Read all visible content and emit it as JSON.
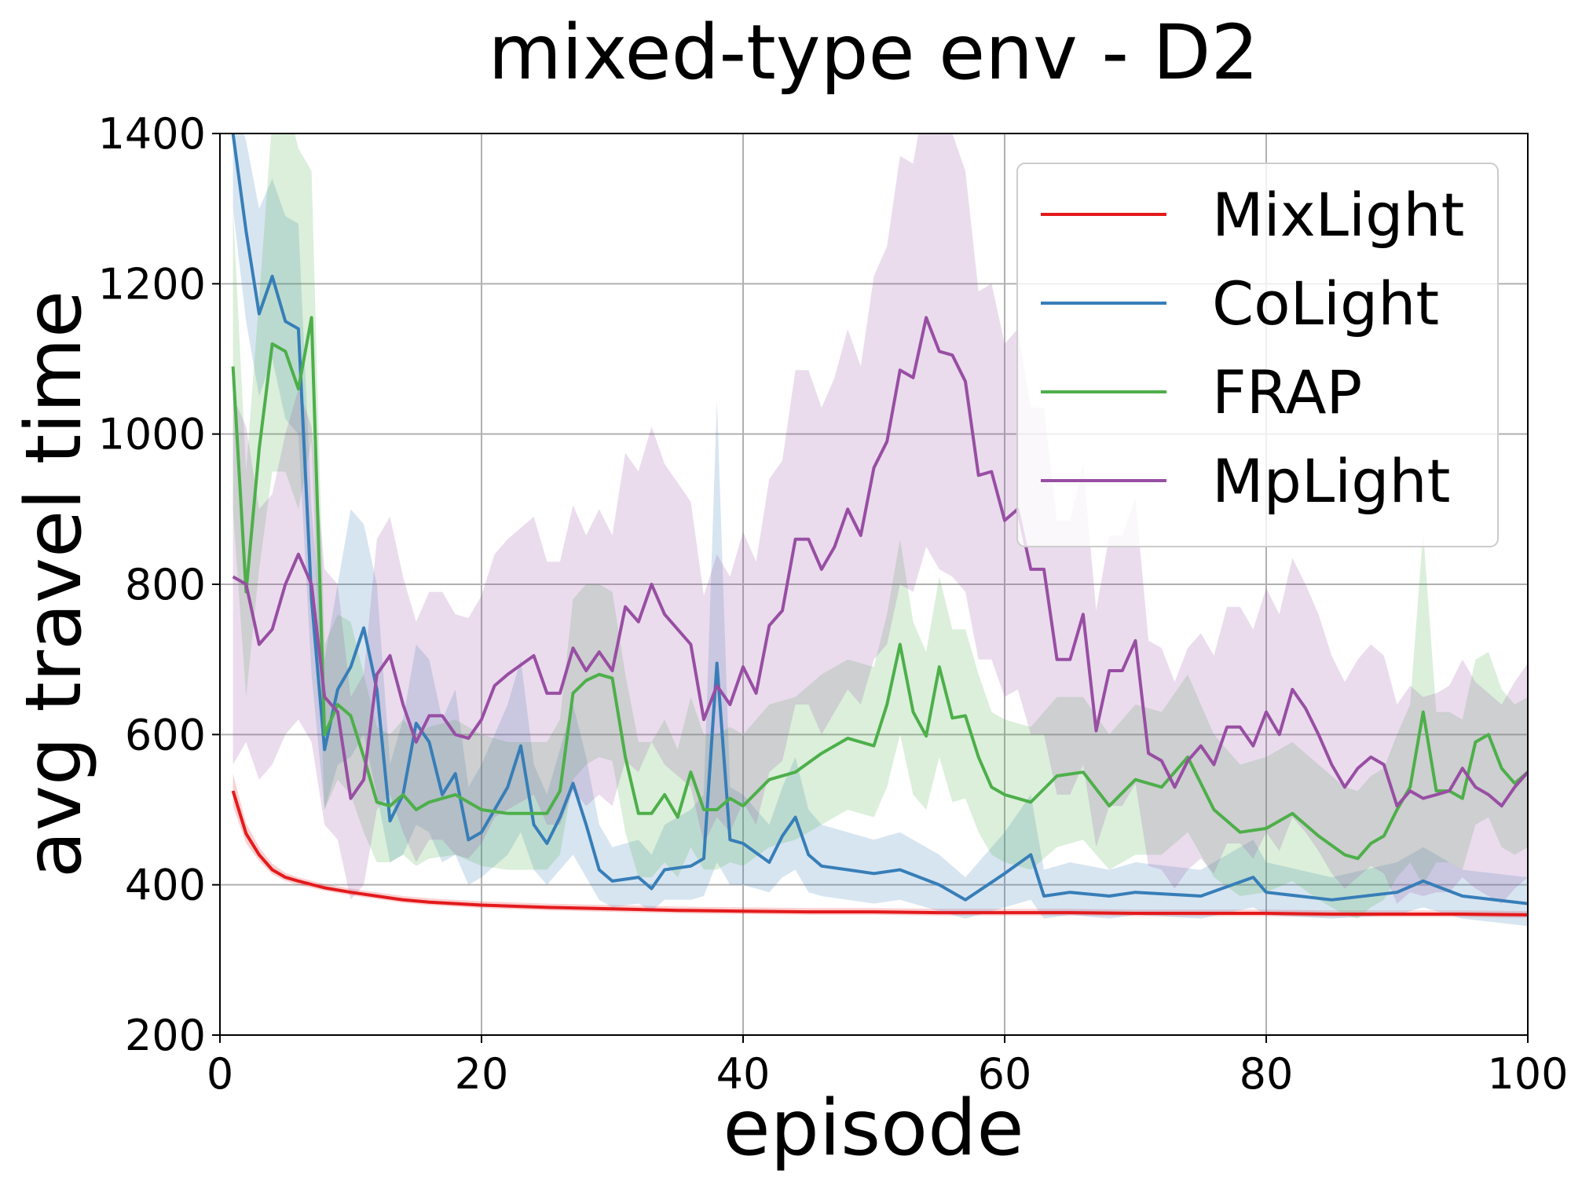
{
  "chart_data": {
    "type": "line",
    "title": "mixed-type env - D2",
    "xlabel": "episode",
    "ylabel": "avg travel time",
    "xlim": [
      0,
      100
    ],
    "ylim": [
      200,
      1400
    ],
    "grid": true,
    "legend_position": "top-right",
    "x_ticks": [
      0,
      20,
      40,
      60,
      80,
      100
    ],
    "x_tick_labels": [
      "0",
      "20",
      "40",
      "60",
      "80",
      "100"
    ],
    "y_ticks": [
      200,
      400,
      600,
      800,
      1000,
      1200,
      1400
    ],
    "y_tick_labels": [
      "200",
      "400",
      "600",
      "800",
      "1000",
      "1200",
      "1400"
    ],
    "series": [
      {
        "name": "MixLight",
        "color": "#e41a1c",
        "x": [
          1,
          2,
          3,
          4,
          5,
          6,
          8,
          10,
          12,
          14,
          16,
          20,
          25,
          30,
          35,
          40,
          45,
          50,
          55,
          60,
          65,
          70,
          75,
          80,
          85,
          90,
          95,
          100
        ],
        "values": [
          525,
          468,
          440,
          420,
          410,
          405,
          396,
          390,
          385,
          380,
          377,
          373,
          370,
          368,
          366,
          365,
          364,
          364,
          363,
          363,
          363,
          362,
          362,
          362,
          361,
          361,
          361,
          360
        ],
        "lower": [
          505,
          455,
          432,
          414,
          405,
          400,
          392,
          386,
          381,
          376,
          373,
          369,
          366,
          364,
          362,
          361,
          360,
          360,
          359,
          359,
          359,
          358,
          358,
          358,
          357,
          357,
          357,
          356
        ],
        "upper": [
          548,
          482,
          450,
          428,
          416,
          410,
          401,
          395,
          390,
          385,
          382,
          378,
          375,
          373,
          371,
          370,
          369,
          369,
          368,
          368,
          368,
          367,
          367,
          367,
          366,
          366,
          366,
          365
        ]
      },
      {
        "name": "CoLight",
        "color": "#377eb8",
        "x": [
          1,
          2,
          3,
          4,
          5,
          6,
          7,
          8,
          9,
          10,
          11,
          12,
          13,
          14,
          15,
          16,
          17,
          18,
          19,
          20,
          22,
          23,
          24,
          25,
          26,
          27,
          28,
          29,
          30,
          32,
          33,
          34,
          36,
          37,
          38,
          39,
          40,
          42,
          43,
          44,
          45,
          46,
          48,
          50,
          52,
          55,
          57,
          60,
          62,
          63,
          65,
          68,
          70,
          75,
          79,
          80,
          85,
          90,
          92,
          95,
          100
        ],
        "values": [
          1400,
          1270,
          1160,
          1210,
          1150,
          1140,
          780,
          580,
          660,
          690,
          742,
          660,
          485,
          520,
          615,
          590,
          520,
          548,
          460,
          470,
          530,
          585,
          480,
          455,
          490,
          535,
          480,
          420,
          405,
          410,
          395,
          420,
          425,
          435,
          695,
          460,
          455,
          430,
          465,
          490,
          440,
          425,
          420,
          415,
          420,
          400,
          380,
          415,
          440,
          385,
          390,
          385,
          390,
          385,
          410,
          390,
          380,
          390,
          405,
          385,
          375
        ],
        "lower": [
          1300,
          1150,
          1050,
          1100,
          1020,
          1000,
          680,
          500,
          560,
          570,
          600,
          520,
          430,
          440,
          480,
          470,
          430,
          440,
          400,
          410,
          440,
          470,
          420,
          400,
          420,
          440,
          410,
          380,
          370,
          375,
          365,
          380,
          380,
          385,
          430,
          400,
          400,
          390,
          410,
          420,
          390,
          385,
          380,
          375,
          380,
          365,
          355,
          370,
          380,
          355,
          360,
          355,
          360,
          355,
          370,
          360,
          355,
          360,
          370,
          355,
          345
        ],
        "upper": [
          1450,
          1390,
          1300,
          1340,
          1290,
          1280,
          900,
          700,
          800,
          900,
          880,
          800,
          560,
          620,
          720,
          700,
          620,
          660,
          530,
          560,
          640,
          700,
          560,
          520,
          580,
          640,
          570,
          480,
          450,
          460,
          440,
          480,
          500,
          520,
          1045,
          530,
          520,
          480,
          530,
          570,
          500,
          480,
          470,
          460,
          470,
          440,
          410,
          470,
          520,
          420,
          430,
          420,
          430,
          420,
          460,
          430,
          410,
          430,
          450,
          420,
          410
        ]
      },
      {
        "name": "FRAP",
        "color": "#4daf4a",
        "x": [
          1,
          2,
          3,
          4,
          5,
          6,
          7,
          8,
          9,
          10,
          11,
          12,
          13,
          14,
          15,
          16,
          18,
          20,
          22,
          25,
          26,
          27,
          28,
          29,
          30,
          31,
          32,
          33,
          34,
          35,
          36,
          37,
          38,
          39,
          40,
          42,
          44,
          46,
          48,
          50,
          51,
          52,
          53,
          54,
          55,
          56,
          57,
          58,
          59,
          60,
          62,
          64,
          66,
          68,
          70,
          72,
          74,
          76,
          78,
          80,
          82,
          84,
          86,
          87,
          88,
          89,
          90,
          91,
          92,
          93,
          94,
          95,
          96,
          97,
          98,
          99,
          100
        ],
        "values": [
          1090,
          790,
          980,
          1120,
          1110,
          1060,
          1155,
          600,
          640,
          625,
          570,
          510,
          505,
          520,
          500,
          510,
          520,
          500,
          495,
          495,
          525,
          655,
          672,
          680,
          675,
          570,
          495,
          495,
          520,
          490,
          550,
          500,
          500,
          515,
          505,
          540,
          550,
          575,
          595,
          585,
          640,
          720,
          630,
          598,
          690,
          622,
          625,
          570,
          530,
          520,
          510,
          545,
          550,
          505,
          540,
          530,
          570,
          500,
          470,
          475,
          495,
          465,
          440,
          435,
          455,
          465,
          500,
          530,
          630,
          525,
          525,
          515,
          590,
          600,
          555,
          535,
          550
        ],
        "lower": [
          900,
          650,
          820,
          950,
          950,
          900,
          990,
          500,
          540,
          520,
          470,
          430,
          430,
          440,
          425,
          435,
          440,
          425,
          420,
          420,
          440,
          540,
          560,
          570,
          565,
          470,
          410,
          410,
          430,
          410,
          450,
          420,
          420,
          430,
          425,
          450,
          460,
          480,
          500,
          490,
          530,
          600,
          520,
          500,
          570,
          510,
          515,
          470,
          440,
          430,
          420,
          450,
          460,
          420,
          440,
          440,
          470,
          410,
          385,
          390,
          405,
          380,
          360,
          355,
          370,
          380,
          410,
          430,
          400,
          430,
          430,
          420,
          480,
          490,
          450,
          440,
          450
        ],
        "upper": [
          1300,
          950,
          1180,
          1420,
          1450,
          1380,
          1350,
          720,
          760,
          750,
          680,
          610,
          600,
          620,
          600,
          610,
          620,
          600,
          590,
          590,
          620,
          780,
          800,
          800,
          790,
          680,
          590,
          590,
          620,
          580,
          650,
          600,
          600,
          610,
          600,
          640,
          650,
          680,
          700,
          690,
          760,
          860,
          750,
          710,
          810,
          740,
          740,
          680,
          630,
          620,
          610,
          650,
          650,
          600,
          640,
          630,
          680,
          600,
          560,
          570,
          590,
          560,
          530,
          525,
          545,
          555,
          600,
          640,
          870,
          630,
          630,
          620,
          700,
          710,
          660,
          640,
          650
        ]
      },
      {
        "name": "MpLight",
        "color": "#984ea3",
        "x": [
          1,
          2,
          3,
          4,
          5,
          6,
          7,
          8,
          9,
          10,
          11,
          12,
          13,
          14,
          15,
          16,
          17,
          18,
          19,
          20,
          21,
          22,
          24,
          25,
          26,
          27,
          28,
          29,
          30,
          31,
          32,
          33,
          34,
          35,
          36,
          37,
          38,
          39,
          40,
          41,
          42,
          43,
          44,
          45,
          46,
          47,
          48,
          49,
          50,
          51,
          52,
          53,
          54,
          55,
          56,
          57,
          58,
          59,
          60,
          61,
          62,
          63,
          64,
          65,
          66,
          67,
          68,
          69,
          70,
          71,
          72,
          73,
          74,
          75,
          76,
          77,
          78,
          79,
          80,
          81,
          82,
          83,
          84,
          85,
          86,
          87,
          88,
          89,
          90,
          91,
          92,
          93,
          94,
          95,
          96,
          97,
          98,
          99,
          100
        ],
        "values": [
          810,
          800,
          720,
          740,
          800,
          840,
          800,
          650,
          630,
          515,
          540,
          680,
          705,
          640,
          590,
          625,
          625,
          600,
          595,
          620,
          665,
          680,
          705,
          655,
          655,
          715,
          685,
          710,
          685,
          770,
          750,
          800,
          760,
          740,
          720,
          620,
          665,
          640,
          690,
          655,
          745,
          765,
          860,
          860,
          820,
          850,
          900,
          865,
          955,
          990,
          1085,
          1075,
          1155,
          1110,
          1105,
          1070,
          945,
          950,
          885,
          900,
          820,
          820,
          700,
          700,
          760,
          605,
          685,
          685,
          725,
          575,
          565,
          530,
          565,
          585,
          560,
          610,
          610,
          585,
          630,
          600,
          660,
          635,
          600,
          560,
          530,
          555,
          570,
          560,
          505,
          525,
          515,
          520,
          525,
          555,
          530,
          520,
          505,
          530,
          550
        ],
        "lower": [
          560,
          590,
          540,
          560,
          600,
          620,
          590,
          480,
          460,
          380,
          400,
          500,
          520,
          470,
          430,
          460,
          460,
          440,
          435,
          455,
          490,
          500,
          520,
          480,
          480,
          525,
          505,
          520,
          505,
          565,
          550,
          590,
          560,
          545,
          530,
          455,
          490,
          470,
          510,
          480,
          550,
          565,
          640,
          640,
          600,
          630,
          660,
          640,
          700,
          720,
          800,
          790,
          850,
          820,
          810,
          790,
          700,
          700,
          650,
          660,
          600,
          600,
          520,
          520,
          560,
          450,
          505,
          505,
          535,
          425,
          420,
          395,
          420,
          435,
          415,
          455,
          455,
          435,
          470,
          445,
          490,
          470,
          445,
          415,
          395,
          410,
          425,
          415,
          375,
          390,
          385,
          390,
          390,
          410,
          395,
          385,
          375,
          395,
          410
        ],
        "upper": [
          1050,
          1010,
          900,
          920,
          1000,
          1060,
          1010,
          820,
          800,
          650,
          680,
          860,
          890,
          810,
          750,
          790,
          790,
          760,
          755,
          785,
          840,
          860,
          890,
          830,
          830,
          905,
          865,
          900,
          865,
          975,
          950,
          1010,
          960,
          935,
          910,
          785,
          840,
          810,
          870,
          830,
          940,
          965,
          1085,
          1085,
          1035,
          1075,
          1140,
          1090,
          1210,
          1250,
          1370,
          1360,
          1460,
          1400,
          1400,
          1350,
          1190,
          1200,
          1120,
          1140,
          1035,
          1035,
          885,
          885,
          960,
          765,
          865,
          865,
          915,
          725,
          715,
          670,
          715,
          735,
          705,
          770,
          770,
          740,
          795,
          760,
          835,
          800,
          760,
          705,
          670,
          700,
          720,
          705,
          640,
          665,
          650,
          655,
          665,
          700,
          670,
          655,
          640,
          670,
          695
        ]
      }
    ]
  }
}
